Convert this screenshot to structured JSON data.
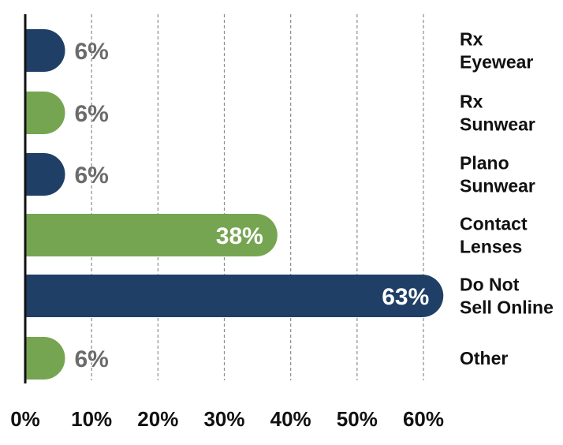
{
  "chart_data": {
    "type": "bar",
    "orientation": "horizontal",
    "categories": [
      [
        "Rx",
        "Eyewear"
      ],
      [
        "Rx",
        "Sunwear"
      ],
      [
        "Plano",
        "Sunwear"
      ],
      [
        "Contact",
        "Lenses"
      ],
      [
        "Do Not",
        "Sell Online"
      ],
      [
        "Other"
      ]
    ],
    "values": [
      6,
      6,
      6,
      38,
      63,
      6
    ],
    "value_labels": [
      "6%",
      "6%",
      "6%",
      "38%",
      "63%",
      "6%"
    ],
    "colors": [
      "#1f3f66",
      "#76a552",
      "#1f3f66",
      "#76a552",
      "#1f3f66",
      "#76a552"
    ],
    "label_colors": [
      "#6b6b6b",
      "#6b6b6b",
      "#6b6b6b",
      "#ffffff",
      "#ffffff",
      "#6b6b6b"
    ],
    "xlim": [
      0,
      60
    ],
    "x_ticks": [
      0,
      10,
      20,
      30,
      40,
      50,
      60
    ],
    "x_tick_labels": [
      "0%",
      "10%",
      "20%",
      "30%",
      "40%",
      "50%",
      "60%"
    ],
    "grid": "vertical dashed",
    "legend": "none",
    "category_label_position": "right",
    "title": "",
    "xlabel": "",
    "ylabel": ""
  }
}
